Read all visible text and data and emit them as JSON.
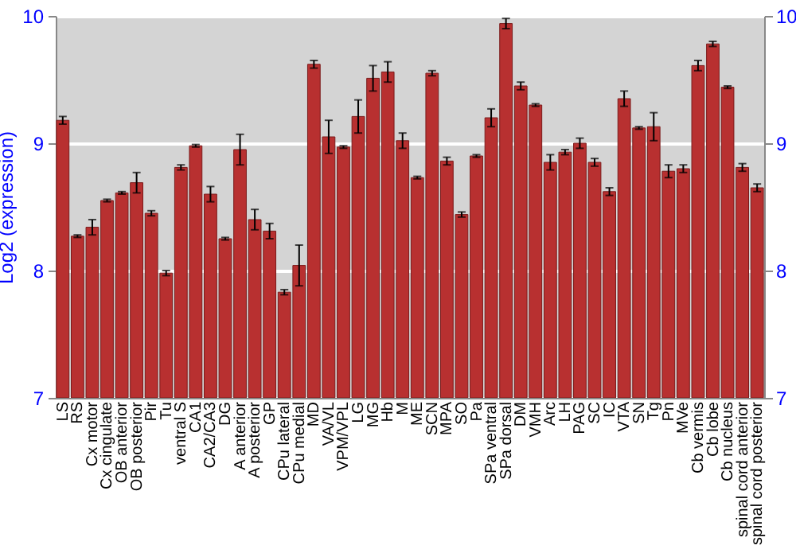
{
  "chart_data": {
    "type": "bar",
    "ylabel": "Log2 (expression)",
    "categories": [
      "LS",
      "RS",
      "Cx motor",
      "Cx cingulate",
      "OB anterior",
      "OB posterior",
      "Pir",
      "Tu",
      "ventral S",
      "CA1",
      "CA2/CA3",
      "DG",
      "A anterior",
      "A posterior",
      "GP",
      "CPu lateral",
      "CPu medial",
      "MD",
      "VA/VL",
      "VPM/VPL",
      "LG",
      "MG",
      "Hb",
      "M",
      "ME",
      "SCN",
      "MPA",
      "SO",
      "Pa",
      "SPa ventral",
      "SPa dorsal",
      "DM",
      "VMH",
      "Arc",
      "LH",
      "PAG",
      "SC",
      "IC",
      "VTA",
      "SN",
      "Tg",
      "Pn",
      "MVe",
      "Cb vermis",
      "Cb lobe",
      "Cb nucleus",
      "spinal cord anterior",
      "spinal cord posterior"
    ],
    "series": [
      {
        "color": "#b83030",
        "values": [
          9.18,
          8.27,
          8.34,
          8.55,
          8.61,
          8.69,
          8.45,
          7.98,
          8.81,
          8.98,
          8.6,
          8.25,
          8.95,
          8.4,
          8.31,
          7.83,
          8.04,
          9.62,
          9.05,
          8.97,
          9.21,
          9.51,
          9.56,
          9.02,
          8.73,
          9.55,
          8.86,
          8.44,
          8.9,
          9.2,
          9.94,
          9.45,
          9.3,
          8.85,
          8.93,
          9,
          8.85,
          8.62,
          9.35,
          9.12,
          9.13,
          8.78,
          8.8,
          9.61,
          9.78,
          9.44,
          8.81,
          8.65
        ],
        "errors": [
          0.03,
          0.01,
          0.06,
          0.01,
          0.01,
          0.08,
          0.02,
          0.02,
          0.02,
          0.01,
          0.06,
          0.01,
          0.12,
          0.08,
          0.06,
          0.02,
          0.16,
          0.03,
          0.13,
          0.01,
          0.13,
          0.1,
          0.08,
          0.06,
          0.01,
          0.02,
          0.03,
          0.02,
          0.01,
          0.07,
          0.04,
          0.03,
          0.01,
          0.06,
          0.02,
          0.04,
          0.03,
          0.03,
          0.06,
          0.01,
          0.11,
          0.05,
          0.03,
          0.04,
          0.02,
          0.01,
          0.03,
          0.03
        ]
      }
    ],
    "ylim": [
      7,
      10
    ],
    "yticks": [
      7,
      8,
      9,
      10
    ],
    "y2lim": [
      7,
      10
    ],
    "y2ticks": [
      7,
      8,
      9,
      10
    ],
    "grid": "y",
    "legend": false
  }
}
